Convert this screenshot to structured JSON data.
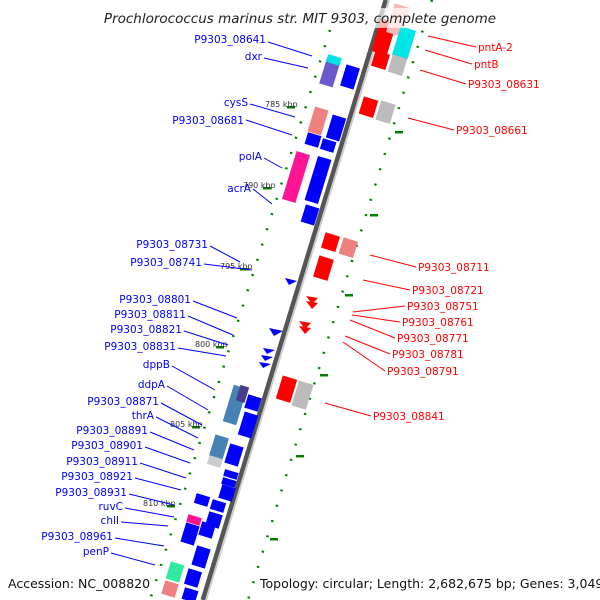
{
  "title": "Prochlorococcus marinus str. MIT 9303, complete genome",
  "footer": {
    "accession": "Accession: NC_008820",
    "topology": "Topology: circular; Length: 2,682,675 bp; Genes: 3,049"
  },
  "ruler": [
    "785 kbp",
    "790 kbp",
    "795 kbp",
    "800 kbp",
    "805 kbp",
    "810 kbp"
  ],
  "left_labels": [
    "P9303_08641",
    "dxr",
    "cysS",
    "P9303_08681",
    "polA",
    "acrA",
    "P9303_08731",
    "P9303_08741",
    "P9303_08801",
    "P9303_08811",
    "P9303_08821",
    "P9303_08831",
    "dppB",
    "ddpA",
    "P9303_08871",
    "thrA",
    "P9303_08891",
    "P9303_08901",
    "P9303_08911",
    "P9303_08921",
    "P9303_08931",
    "ruvC",
    "chlI",
    "P9303_08961",
    "penP"
  ],
  "right_labels": [
    "pntA-2",
    "pntB",
    "P9303_08631",
    "P9303_08661",
    "P9303_08711",
    "P9303_08721",
    "P9303_08751",
    "P9303_08761",
    "P9303_08771",
    "P9303_08781",
    "P9303_08791",
    "P9303_08841"
  ],
  "colors": {
    "forward": "#0000ff",
    "reverse": "#ff0000",
    "tick": "#008000",
    "backbone": "#888888"
  }
}
